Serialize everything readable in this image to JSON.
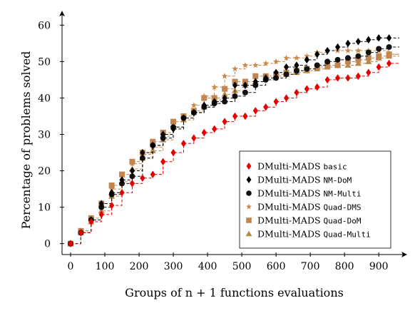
{
  "chart_data": {
    "type": "line",
    "xlabel": "Groups of n + 1 functions evaluations",
    "ylabel": "Percentage of problems solved",
    "xlim": [
      -25,
      960
    ],
    "ylim": [
      -3,
      63
    ],
    "x_ticks": [
      0,
      100,
      200,
      300,
      400,
      500,
      600,
      700,
      800,
      900
    ],
    "y_ticks": [
      0,
      10,
      20,
      30,
      40,
      50,
      60
    ],
    "legend_position": "bottom-right",
    "grid": false,
    "series": [
      {
        "name_main": "DMulti-MADS",
        "name_code": "basic",
        "color": "#e60000",
        "marker": "diamond",
        "points": [
          [
            0,
            0
          ],
          [
            30,
            3
          ],
          [
            60,
            6
          ],
          [
            90,
            8
          ],
          [
            120,
            10.5
          ],
          [
            150,
            14
          ],
          [
            180,
            16.5
          ],
          [
            210,
            18
          ],
          [
            240,
            19
          ],
          [
            270,
            22.5
          ],
          [
            300,
            25
          ],
          [
            330,
            27.5
          ],
          [
            360,
            29
          ],
          [
            390,
            30.5
          ],
          [
            420,
            31.5
          ],
          [
            450,
            33.5
          ],
          [
            480,
            35
          ],
          [
            510,
            35
          ],
          [
            540,
            36.5
          ],
          [
            570,
            37.5
          ],
          [
            600,
            39
          ],
          [
            630,
            40
          ],
          [
            660,
            41.5
          ],
          [
            690,
            42.5
          ],
          [
            720,
            43
          ],
          [
            750,
            45
          ],
          [
            780,
            45.5
          ],
          [
            810,
            45.5
          ],
          [
            840,
            46
          ],
          [
            870,
            47
          ],
          [
            900,
            48.5
          ],
          [
            930,
            49.5
          ]
        ]
      },
      {
        "name_main": "DMulti-MADS",
        "name_code": "NM-DoM",
        "color": "#000000",
        "marker": "diamond",
        "points": [
          [
            0,
            0
          ],
          [
            30,
            3
          ],
          [
            60,
            6.5
          ],
          [
            90,
            11
          ],
          [
            120,
            14
          ],
          [
            150,
            17.5
          ],
          [
            180,
            20
          ],
          [
            210,
            25
          ],
          [
            240,
            27
          ],
          [
            270,
            30
          ],
          [
            300,
            31.5
          ],
          [
            330,
            34.5
          ],
          [
            360,
            36
          ],
          [
            390,
            38
          ],
          [
            420,
            39
          ],
          [
            450,
            40
          ],
          [
            480,
            43.5
          ],
          [
            510,
            43.5
          ],
          [
            540,
            44.5
          ],
          [
            570,
            45.5
          ],
          [
            600,
            47
          ],
          [
            630,
            48.5
          ],
          [
            660,
            49
          ],
          [
            690,
            50.5
          ],
          [
            720,
            52
          ],
          [
            750,
            53
          ],
          [
            780,
            54
          ],
          [
            810,
            55
          ],
          [
            840,
            55.5
          ],
          [
            870,
            56
          ],
          [
            900,
            56.5
          ],
          [
            930,
            56.5
          ]
        ]
      },
      {
        "name_main": "DMulti-MADS",
        "name_code": "NM-Multi",
        "color": "#111111",
        "marker": "circle",
        "points": [
          [
            0,
            0
          ],
          [
            30,
            3
          ],
          [
            60,
            6.5
          ],
          [
            90,
            10
          ],
          [
            120,
            13.5
          ],
          [
            150,
            16.5
          ],
          [
            180,
            18.5
          ],
          [
            210,
            23.5
          ],
          [
            240,
            27
          ],
          [
            270,
            29
          ],
          [
            300,
            32
          ],
          [
            330,
            34.5
          ],
          [
            360,
            36
          ],
          [
            390,
            37.5
          ],
          [
            420,
            38.5
          ],
          [
            450,
            39
          ],
          [
            480,
            40.5
          ],
          [
            510,
            41.5
          ],
          [
            540,
            43.5
          ],
          [
            570,
            45
          ],
          [
            600,
            45.5
          ],
          [
            630,
            46.5
          ],
          [
            660,
            47.5
          ],
          [
            690,
            48
          ],
          [
            720,
            49
          ],
          [
            750,
            50
          ],
          [
            780,
            50.5
          ],
          [
            810,
            51
          ],
          [
            840,
            51.5
          ],
          [
            870,
            52.5
          ],
          [
            900,
            53.5
          ],
          [
            930,
            54
          ]
        ]
      },
      {
        "name_main": "DMulti-MADS",
        "name_code": "Quad-DMS",
        "color": "#c8894a",
        "marker": "star",
        "points": [
          [
            0,
            0
          ],
          [
            30,
            3.5
          ],
          [
            60,
            7
          ],
          [
            90,
            11
          ],
          [
            120,
            15
          ],
          [
            150,
            19
          ],
          [
            180,
            22
          ],
          [
            210,
            24.5
          ],
          [
            240,
            26.5
          ],
          [
            270,
            29.5
          ],
          [
            300,
            32
          ],
          [
            330,
            35
          ],
          [
            360,
            38
          ],
          [
            390,
            40.5
          ],
          [
            420,
            43
          ],
          [
            450,
            46
          ],
          [
            480,
            48
          ],
          [
            510,
            49
          ],
          [
            540,
            49
          ],
          [
            570,
            49.5
          ],
          [
            600,
            50
          ],
          [
            630,
            51
          ],
          [
            660,
            51
          ],
          [
            690,
            51.5
          ],
          [
            720,
            52.5
          ],
          [
            750,
            53
          ],
          [
            780,
            53
          ],
          [
            810,
            53
          ],
          [
            840,
            53
          ],
          [
            870,
            53
          ],
          [
            900,
            53
          ],
          [
            930,
            52
          ]
        ]
      },
      {
        "name_main": "DMulti-MADS",
        "name_code": "Quad-DoM",
        "color": "#c08550",
        "marker": "square",
        "points": [
          [
            0,
            0
          ],
          [
            30,
            3.5
          ],
          [
            60,
            7
          ],
          [
            90,
            11
          ],
          [
            120,
            16
          ],
          [
            150,
            19
          ],
          [
            180,
            22.5
          ],
          [
            210,
            25
          ],
          [
            240,
            28
          ],
          [
            270,
            30.5
          ],
          [
            300,
            33.5
          ],
          [
            330,
            35
          ],
          [
            360,
            36.5
          ],
          [
            390,
            40
          ],
          [
            420,
            40
          ],
          [
            450,
            42.5
          ],
          [
            480,
            44.5
          ],
          [
            510,
            44.5
          ],
          [
            540,
            46
          ],
          [
            570,
            46
          ],
          [
            600,
            46.5
          ],
          [
            630,
            47
          ],
          [
            660,
            47.5
          ],
          [
            690,
            48
          ],
          [
            720,
            48.5
          ],
          [
            750,
            49
          ],
          [
            780,
            49
          ],
          [
            810,
            50
          ],
          [
            840,
            50.5
          ],
          [
            870,
            51
          ],
          [
            900,
            51.5
          ],
          [
            930,
            52
          ]
        ]
      },
      {
        "name_main": "DMulti-MADS",
        "name_code": "Quad-Multi",
        "color": "#b8874a",
        "marker": "triangle",
        "points": [
          [
            0,
            0
          ],
          [
            30,
            3
          ],
          [
            60,
            6
          ],
          [
            90,
            9
          ],
          [
            120,
            13
          ],
          [
            150,
            17
          ],
          [
            180,
            20.5
          ],
          [
            210,
            23.5
          ],
          [
            240,
            25.5
          ],
          [
            270,
            28.5
          ],
          [
            300,
            32
          ],
          [
            330,
            34
          ],
          [
            360,
            36
          ],
          [
            390,
            37.5
          ],
          [
            420,
            39.5
          ],
          [
            450,
            41
          ],
          [
            480,
            42
          ],
          [
            510,
            43.5
          ],
          [
            540,
            44.5
          ],
          [
            570,
            45.5
          ],
          [
            600,
            46
          ],
          [
            630,
            46.5
          ],
          [
            660,
            47
          ],
          [
            690,
            47.5
          ],
          [
            720,
            48
          ],
          [
            750,
            48.5
          ],
          [
            780,
            49
          ],
          [
            810,
            49
          ],
          [
            840,
            49.5
          ],
          [
            870,
            50
          ],
          [
            900,
            51
          ],
          [
            930,
            51.5
          ]
        ]
      }
    ]
  }
}
